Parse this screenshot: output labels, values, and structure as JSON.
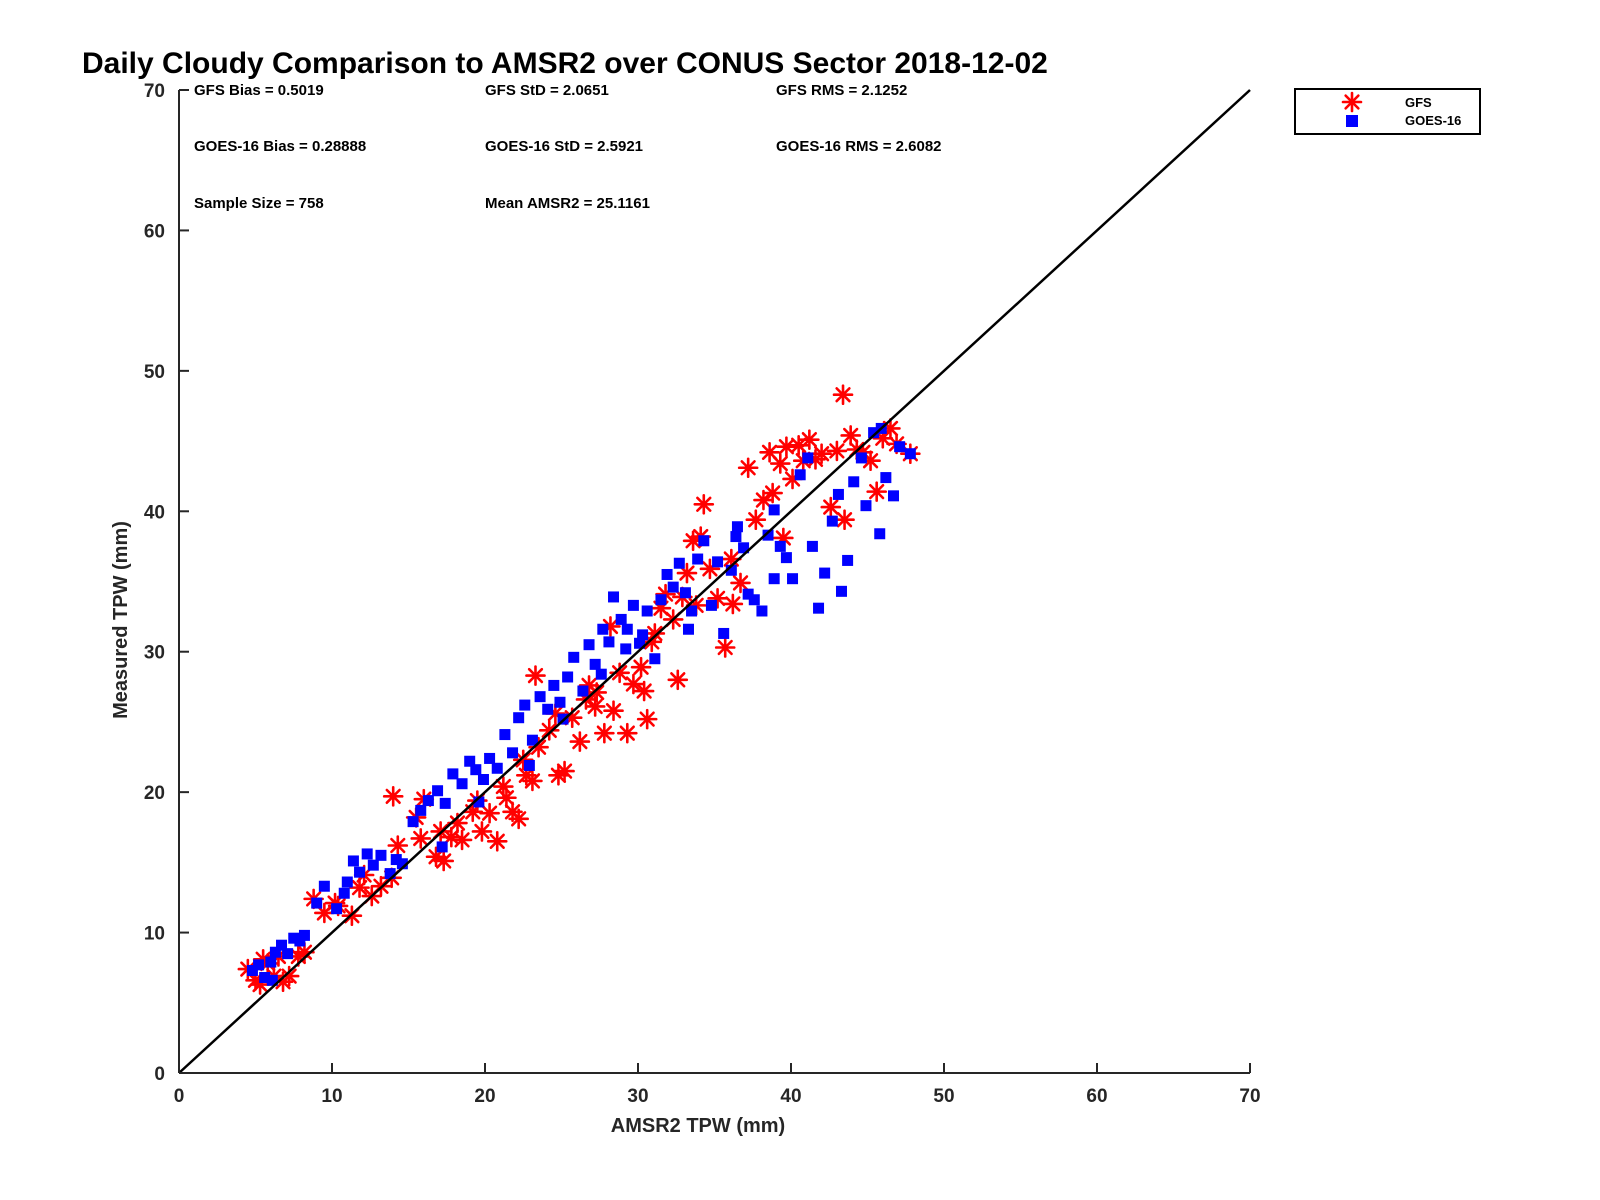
{
  "chart_data": {
    "type": "scatter",
    "title": "Daily Cloudy Comparison to AMSR2 over CONUS Sector 2018-12-02",
    "xlabel": "AMSR2 TPW (mm)",
    "ylabel": "Measured TPW (mm)",
    "xlim": [
      0,
      70
    ],
    "ylim": [
      0,
      70
    ],
    "x_ticks": [
      "0",
      "10",
      "20",
      "30",
      "40",
      "50",
      "60",
      "70"
    ],
    "y_ticks": [
      "0",
      "10",
      "20",
      "30",
      "40",
      "50",
      "60",
      "70"
    ],
    "reference_line": {
      "from": [
        0,
        0
      ],
      "to": [
        70,
        70
      ],
      "label": "1:1"
    },
    "stats": {
      "gfs_bias": "GFS Bias = 0.5019",
      "gfs_std": "GFS StD = 2.0651",
      "gfs_rms": "GFS RMS = 2.1252",
      "goes_bias": "GOES-16 Bias = 0.28888",
      "goes_std": "GOES-16 StD = 2.5921",
      "goes_rms": "GOES-16 RMS = 2.6082",
      "sample_size": "Sample Size = 758",
      "mean_amsr2": "Mean AMSR2 = 25.1161"
    },
    "legend": {
      "placement": "top-right-outside",
      "entries": [
        "GFS",
        "GOES-16"
      ]
    },
    "series": [
      {
        "name": "GFS",
        "marker": "asterisk",
        "color": "#ff0000",
        "points": [
          [
            4.5,
            7.4
          ],
          [
            5,
            6.6
          ],
          [
            5.3,
            6.3
          ],
          [
            5.8,
            7.8
          ],
          [
            6.2,
            6.9
          ],
          [
            6.8,
            6.5
          ],
          [
            7.2,
            6.9
          ],
          [
            7.8,
            8.3
          ],
          [
            8.2,
            8.6
          ],
          [
            5.5,
            8.1
          ],
          [
            8.8,
            12.4
          ],
          [
            9.5,
            11.4
          ],
          [
            10.4,
            11.9
          ],
          [
            11.3,
            11.2
          ],
          [
            11.8,
            13.2
          ],
          [
            12.6,
            12.6
          ],
          [
            13.2,
            13.3
          ],
          [
            13.9,
            13.9
          ],
          [
            14.3,
            16.2
          ],
          [
            14,
            19.7
          ],
          [
            15.5,
            18.2
          ],
          [
            16,
            19.5
          ],
          [
            16.8,
            15.4
          ],
          [
            17.3,
            15.1
          ],
          [
            17.8,
            16.8
          ],
          [
            18.5,
            16.6
          ],
          [
            19.2,
            18.6
          ],
          [
            19.8,
            17.2
          ],
          [
            20.3,
            18.5
          ],
          [
            20.8,
            16.5
          ],
          [
            21.4,
            19.6
          ],
          [
            21.8,
            18.6
          ],
          [
            22.2,
            18.1
          ],
          [
            22.7,
            21.2
          ],
          [
            23.1,
            20.8
          ],
          [
            23.5,
            23.2
          ],
          [
            23.3,
            28.3
          ],
          [
            24.2,
            24.4
          ],
          [
            24.8,
            21.2
          ],
          [
            25.2,
            21.5
          ],
          [
            25.7,
            25.3
          ],
          [
            26.2,
            23.6
          ],
          [
            26.6,
            26.6
          ],
          [
            27.3,
            27.1
          ],
          [
            27.8,
            24.2
          ],
          [
            28.4,
            25.8
          ],
          [
            28.8,
            28.5
          ],
          [
            29.3,
            24.2
          ],
          [
            29.7,
            27.7
          ],
          [
            30.2,
            28.9
          ],
          [
            30.6,
            25.2
          ],
          [
            30.4,
            27.2
          ],
          [
            31.1,
            31.3
          ],
          [
            31.5,
            33.1
          ],
          [
            31.8,
            34.1
          ],
          [
            32.3,
            32.3
          ],
          [
            32.6,
            28
          ],
          [
            33.2,
            35.6
          ],
          [
            33.6,
            37.9
          ],
          [
            34.3,
            40.5
          ],
          [
            34.7,
            35.9
          ],
          [
            35.2,
            33.8
          ],
          [
            35.7,
            30.3
          ],
          [
            36.2,
            33.4
          ],
          [
            36.7,
            34.9
          ],
          [
            37.2,
            43.1
          ],
          [
            37.7,
            39.4
          ],
          [
            38.2,
            40.8
          ],
          [
            38.6,
            44.2
          ],
          [
            38.8,
            41.3
          ],
          [
            39.3,
            43.4
          ],
          [
            39.7,
            44.6
          ],
          [
            40.1,
            42.3
          ],
          [
            40.5,
            44.7
          ],
          [
            40.8,
            43.6
          ],
          [
            41.2,
            45.1
          ],
          [
            41.6,
            43.7
          ],
          [
            42,
            44.1
          ],
          [
            42.6,
            40.3
          ],
          [
            43,
            44.3
          ],
          [
            43.4,
            48.3
          ],
          [
            43.5,
            39.4
          ],
          [
            43.9,
            45.4
          ],
          [
            44.3,
            44.4
          ],
          [
            44.7,
            44.2
          ],
          [
            45.2,
            43.6
          ],
          [
            45.6,
            41.4
          ],
          [
            46,
            45.2
          ],
          [
            46.5,
            45.9
          ],
          [
            46.9,
            44.8
          ],
          [
            47.8,
            44.1
          ],
          [
            34.1,
            38.2
          ],
          [
            32.9,
            33.9
          ],
          [
            28.2,
            31.8
          ],
          [
            26.8,
            27.6
          ],
          [
            24.6,
            25.6
          ],
          [
            22.5,
            22.3
          ],
          [
            19.5,
            19.4
          ],
          [
            18.2,
            17.8
          ],
          [
            15.8,
            16.7
          ],
          [
            12.1,
            14.1
          ],
          [
            10.2,
            12.1
          ],
          [
            6.5,
            8.3
          ],
          [
            39.5,
            38.1
          ],
          [
            36.1,
            36.6
          ],
          [
            33.8,
            33.3
          ],
          [
            30.9,
            30.7
          ],
          [
            27.2,
            26.1
          ],
          [
            21.2,
            20.4
          ],
          [
            17.1,
            17.2
          ]
        ]
      },
      {
        "name": "GOES-16",
        "marker": "square",
        "color": "#0000ff",
        "points": [
          [
            4.8,
            7.3
          ],
          [
            5.2,
            7.7
          ],
          [
            5.6,
            6.8
          ],
          [
            6,
            7.9
          ],
          [
            6.3,
            8.6
          ],
          [
            6.7,
            9.1
          ],
          [
            7.1,
            8.5
          ],
          [
            7.5,
            9.6
          ],
          [
            7.9,
            9.4
          ],
          [
            6.1,
            6.6
          ],
          [
            9,
            12.1
          ],
          [
            9.5,
            13.3
          ],
          [
            10.3,
            11.7
          ],
          [
            11,
            13.6
          ],
          [
            11.4,
            15.1
          ],
          [
            11.8,
            14.3
          ],
          [
            12.3,
            15.6
          ],
          [
            12.7,
            14.8
          ],
          [
            13.2,
            15.5
          ],
          [
            13.8,
            14.2
          ],
          [
            14.2,
            15.2
          ],
          [
            15.3,
            17.9
          ],
          [
            15.8,
            18.7
          ],
          [
            16.3,
            19.4
          ],
          [
            16.9,
            20.1
          ],
          [
            17.4,
            19.2
          ],
          [
            17.9,
            21.3
          ],
          [
            18.5,
            20.6
          ],
          [
            19,
            22.2
          ],
          [
            19.4,
            21.6
          ],
          [
            19.9,
            20.9
          ],
          [
            20.3,
            22.4
          ],
          [
            20.8,
            21.7
          ],
          [
            21.3,
            24.1
          ],
          [
            21.8,
            22.8
          ],
          [
            22.2,
            25.3
          ],
          [
            22.6,
            26.2
          ],
          [
            23.1,
            23.7
          ],
          [
            23.6,
            26.8
          ],
          [
            24.1,
            25.9
          ],
          [
            24.5,
            27.6
          ],
          [
            24.9,
            26.4
          ],
          [
            25.4,
            28.2
          ],
          [
            25.8,
            29.6
          ],
          [
            26.4,
            27.2
          ],
          [
            26.8,
            30.5
          ],
          [
            27.2,
            29.1
          ],
          [
            27.7,
            31.6
          ],
          [
            28.1,
            30.7
          ],
          [
            28.4,
            33.9
          ],
          [
            28.9,
            32.3
          ],
          [
            29.3,
            31.6
          ],
          [
            29.7,
            33.3
          ],
          [
            30.1,
            30.6
          ],
          [
            30.6,
            32.9
          ],
          [
            31.1,
            29.5
          ],
          [
            31.5,
            33.7
          ],
          [
            31.9,
            35.5
          ],
          [
            32.3,
            34.6
          ],
          [
            32.7,
            36.3
          ],
          [
            33.1,
            34.2
          ],
          [
            33.5,
            32.9
          ],
          [
            33.9,
            36.6
          ],
          [
            34.3,
            37.9
          ],
          [
            34.8,
            33.3
          ],
          [
            35.2,
            36.4
          ],
          [
            35.6,
            31.3
          ],
          [
            36.1,
            35.8
          ],
          [
            36.5,
            38.9
          ],
          [
            36.9,
            37.4
          ],
          [
            37.2,
            34.1
          ],
          [
            37.6,
            33.7
          ],
          [
            38.1,
            32.9
          ],
          [
            38.5,
            38.3
          ],
          [
            38.9,
            35.2
          ],
          [
            39.3,
            37.5
          ],
          [
            39.7,
            36.7
          ],
          [
            40.1,
            35.2
          ],
          [
            40.6,
            42.6
          ],
          [
            41.1,
            43.8
          ],
          [
            41.4,
            37.5
          ],
          [
            41.8,
            33.1
          ],
          [
            42.2,
            35.6
          ],
          [
            42.7,
            39.3
          ],
          [
            43.1,
            41.2
          ],
          [
            43.3,
            34.3
          ],
          [
            43.7,
            36.5
          ],
          [
            44.1,
            42.1
          ],
          [
            44.6,
            43.8
          ],
          [
            44.9,
            40.4
          ],
          [
            45.4,
            45.6
          ],
          [
            45.8,
            38.4
          ],
          [
            46.2,
            42.4
          ],
          [
            46.7,
            41.1
          ],
          [
            47.1,
            44.6
          ],
          [
            47.8,
            44.1
          ],
          [
            45.9,
            45.9
          ],
          [
            30.3,
            31.2
          ],
          [
            29.2,
            30.2
          ],
          [
            27.6,
            28.4
          ],
          [
            25.1,
            25.2
          ],
          [
            22.9,
            21.9
          ],
          [
            19.6,
            19.3
          ],
          [
            17.2,
            16.1
          ],
          [
            14.6,
            14.9
          ],
          [
            10.8,
            12.8
          ],
          [
            8.2,
            9.8
          ],
          [
            36.4,
            38.2
          ],
          [
            38.9,
            40.1
          ],
          [
            33.3,
            31.6
          ]
        ]
      }
    ]
  }
}
